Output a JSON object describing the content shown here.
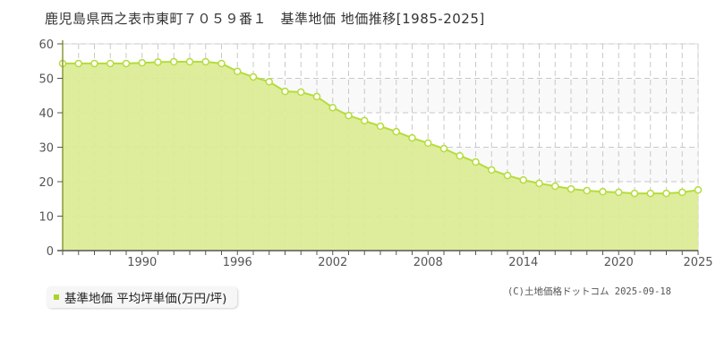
{
  "header": {
    "title": "鹿児島県西之表市東町７０５９番１　基準地価 地価推移[1985-2025]"
  },
  "legend": {
    "label": "基準地価 平均坪単価(万円/坪)",
    "swatch_color": "#a8d42a"
  },
  "footer": {
    "copyright": "(C)土地価格ドットコム 2025-09-18"
  },
  "colors": {
    "area_fill": "#dbeb93",
    "line": "#b5dc3c",
    "marker_fill": "#ffffff",
    "marker_stroke": "#b5dc3c",
    "band": "#f9f9f9",
    "grid": "#c8c8c8",
    "axis": "#555555"
  },
  "chart_data": {
    "type": "area",
    "title": "鹿児島県西之表市東町７０５９番１　基準地価 地価推移[1985-2025]",
    "xlabel": "",
    "ylabel": "",
    "ylim": [
      0,
      60
    ],
    "xlim": [
      1985,
      2025
    ],
    "yticks": [
      0,
      10,
      20,
      30,
      40,
      50,
      60
    ],
    "xtick_labels": [
      "1990",
      "1996",
      "2002",
      "2008",
      "2014",
      "2020",
      "2025"
    ],
    "grid": true,
    "legend_position": "bottom-left",
    "series": [
      {
        "name": "基準地価 平均坪単価(万円/坪)",
        "x": [
          1985,
          1986,
          1987,
          1988,
          1989,
          1990,
          1991,
          1992,
          1993,
          1994,
          1995,
          1996,
          1997,
          1998,
          1999,
          2000,
          2001,
          2002,
          2003,
          2004,
          2005,
          2006,
          2007,
          2008,
          2009,
          2010,
          2011,
          2012,
          2013,
          2014,
          2015,
          2016,
          2017,
          2018,
          2019,
          2020,
          2021,
          2022,
          2023,
          2024,
          2025
        ],
        "values": [
          54.3,
          54.3,
          54.3,
          54.3,
          54.3,
          54.5,
          54.7,
          54.8,
          54.8,
          54.8,
          54.3,
          52.0,
          50.4,
          49.0,
          46.2,
          46.0,
          44.7,
          41.5,
          39.2,
          37.7,
          36.1,
          34.5,
          32.7,
          31.2,
          29.6,
          27.5,
          25.7,
          23.4,
          21.8,
          20.5,
          19.5,
          18.7,
          17.9,
          17.4,
          17.1,
          16.9,
          16.6,
          16.6,
          16.6,
          16.9,
          17.6
        ]
      }
    ]
  }
}
